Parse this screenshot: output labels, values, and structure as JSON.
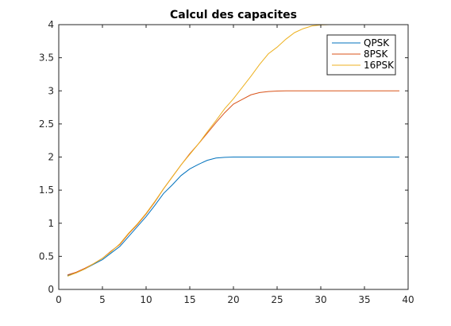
{
  "chart_data": {
    "type": "line",
    "title": "Calcul des capacites",
    "xlabel": "",
    "ylabel": "",
    "xlim": [
      0,
      40
    ],
    "ylim": [
      0,
      4
    ],
    "xticks": [
      0,
      5,
      10,
      15,
      20,
      25,
      30,
      35,
      40
    ],
    "yticks": [
      0,
      0.5,
      1,
      1.5,
      2,
      2.5,
      3,
      3.5,
      4
    ],
    "xtick_labels": [
      "0",
      "5",
      "10",
      "15",
      "20",
      "25",
      "30",
      "35",
      "40"
    ],
    "ytick_labels": [
      "0",
      "0.5",
      "1",
      "1.5",
      "2",
      "2.5",
      "3",
      "3.5",
      "4"
    ],
    "grid": false,
    "legend_position": "top-right",
    "x": [
      1,
      2,
      3,
      4,
      5,
      6,
      7,
      8,
      9,
      10,
      11,
      12,
      13,
      14,
      15,
      16,
      17,
      18,
      19,
      20,
      21,
      22,
      23,
      24,
      25,
      26,
      27,
      28,
      29,
      30,
      31,
      32,
      33,
      34,
      35,
      36,
      37,
      38,
      39
    ],
    "series": [
      {
        "name": "QPSK",
        "color": "#0072BD",
        "values": [
          0.21,
          0.25,
          0.31,
          0.38,
          0.45,
          0.55,
          0.65,
          0.8,
          0.95,
          1.1,
          1.27,
          1.45,
          1.58,
          1.72,
          1.82,
          1.89,
          1.95,
          1.985,
          1.995,
          2.0,
          2.0,
          2.0,
          2.0,
          2.0,
          2.0,
          2.0,
          2.0,
          2.0,
          2.0,
          2.0,
          2.0,
          2.0,
          2.0,
          2.0,
          2.0,
          2.0,
          2.0,
          2.0,
          2.0
        ]
      },
      {
        "name": "8PSK",
        "color": "#D95319",
        "values": [
          0.22,
          0.26,
          0.32,
          0.39,
          0.47,
          0.58,
          0.68,
          0.84,
          0.98,
          1.14,
          1.32,
          1.52,
          1.7,
          1.88,
          2.05,
          2.2,
          2.36,
          2.52,
          2.67,
          2.8,
          2.87,
          2.94,
          2.975,
          2.99,
          2.997,
          3.0,
          3.0,
          3.0,
          3.0,
          3.0,
          3.0,
          3.0,
          3.0,
          3.0,
          3.0,
          3.0,
          3.0,
          3.0,
          3.0
        ]
      },
      {
        "name": "16PSK",
        "color": "#EDB120",
        "values": [
          0.2,
          0.25,
          0.31,
          0.39,
          0.47,
          0.57,
          0.69,
          0.85,
          0.99,
          1.15,
          1.33,
          1.52,
          1.7,
          1.88,
          2.04,
          2.2,
          2.38,
          2.55,
          2.73,
          2.88,
          3.05,
          3.22,
          3.4,
          3.56,
          3.66,
          3.78,
          3.88,
          3.94,
          3.98,
          3.995,
          4.0,
          4.0,
          4.0,
          4.0,
          4.0,
          4.0,
          4.0,
          4.0,
          4.0
        ]
      }
    ]
  }
}
